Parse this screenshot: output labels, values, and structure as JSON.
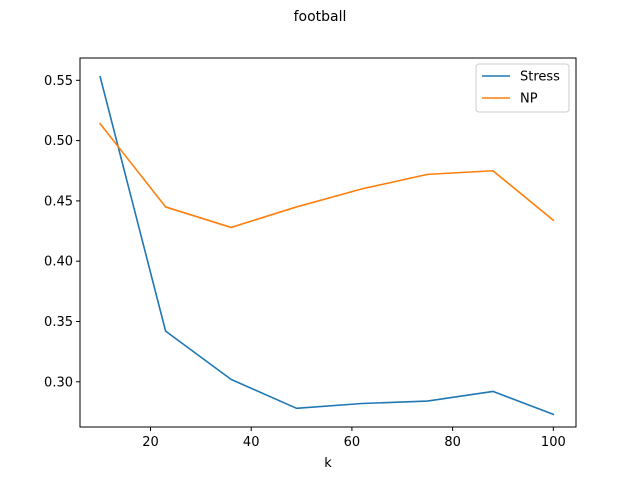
{
  "chart_data": {
    "type": "line",
    "title": "football",
    "xlabel": "k",
    "ylabel": "",
    "xlim": [
      6,
      104.5
    ],
    "ylim": [
      0.2625,
      0.5685
    ],
    "xticks": [
      20,
      40,
      60,
      80,
      100
    ],
    "yticks": [
      0.3,
      0.35,
      0.4,
      0.45,
      0.5,
      0.55
    ],
    "ytick_labels": [
      "0.30",
      "0.35",
      "0.40",
      "0.45",
      "0.50",
      "0.55"
    ],
    "xtick_labels": [
      "20",
      "40",
      "60",
      "80",
      "100"
    ],
    "grid": false,
    "legend_position": "top-right",
    "x": [
      10,
      23,
      36,
      49,
      62,
      75,
      88,
      100
    ],
    "series": [
      {
        "name": "Stress",
        "color": "#1f77b4",
        "values": [
          0.553,
          0.342,
          0.302,
          0.278,
          0.282,
          0.284,
          0.292,
          0.273
        ]
      },
      {
        "name": "NP",
        "color": "#ff7f0e",
        "values": [
          0.514,
          0.445,
          0.428,
          0.445,
          0.46,
          0.472,
          0.475,
          0.434
        ]
      }
    ]
  }
}
